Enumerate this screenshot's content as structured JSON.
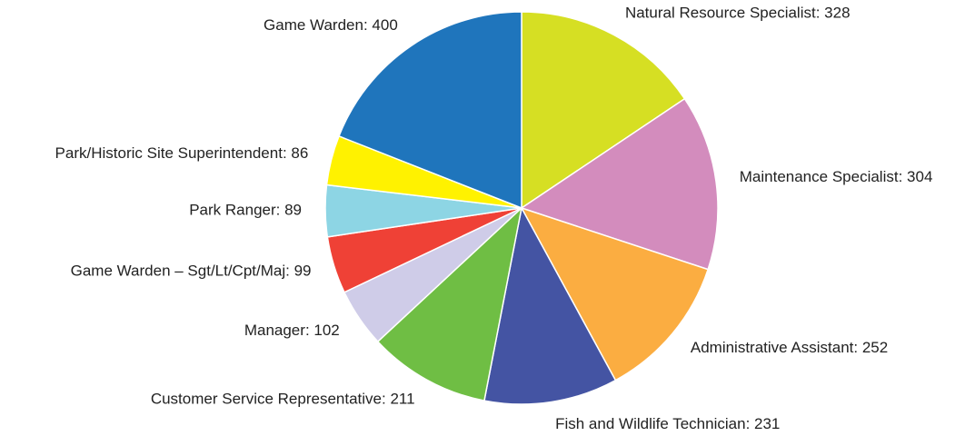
{
  "chart_data": {
    "type": "pie",
    "categories": [
      "Natural Resource Specialist",
      "Maintenance Specialist",
      "Administrative Assistant",
      "Fish and Wildlife Technician",
      "Customer Service Representative",
      "Manager",
      "Game Warden – Sgt/Lt/Cpt/Maj",
      "Park Ranger",
      "Park/Historic Site Superintendent",
      "Game Warden"
    ],
    "values": [
      328,
      304,
      252,
      231,
      211,
      102,
      99,
      89,
      86,
      400
    ],
    "colors": [
      "#d6df23",
      "#d38cbd",
      "#fbad41",
      "#4454a3",
      "#6fbe44",
      "#cfcce8",
      "#ef4136",
      "#8dd5e4",
      "#fff200",
      "#1f75bc"
    ]
  }
}
